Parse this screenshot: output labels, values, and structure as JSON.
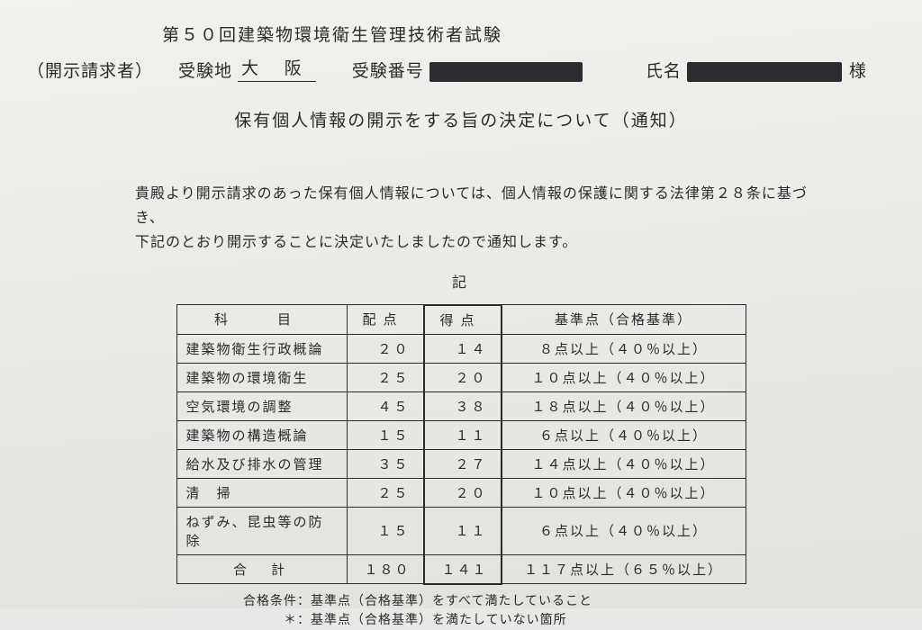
{
  "header": {
    "exam_title": "第５０回建築物環境衛生管理技術者試験",
    "requester_label": "（開示請求者）",
    "location_label": "受験地",
    "location_value": "大 阪",
    "exam_no_label": "受験番号",
    "name_label": "氏名",
    "honorific": "様"
  },
  "subtitle": "保有個人情報の開示をする旨の決定について（通知）",
  "body": {
    "line1": "貴殿より開示請求のあった保有個人情報については、個人情報の保護に関する法律第２８条に基づき、",
    "line2": "下記のとおり開示することに決定いたしましたので通知します。"
  },
  "ki": "記",
  "table": {
    "headers": {
      "subject": "科　目",
      "max": "配点",
      "score": "得点",
      "criteria": "基準点（合格基準）"
    },
    "rows": [
      {
        "subject": "建築物衛生行政概論",
        "max": "２０",
        "score": "１４",
        "criteria": "８点以上（４０％以上）"
      },
      {
        "subject": "建築物の環境衛生",
        "max": "２５",
        "score": "２０",
        "criteria": "１０点以上（４０％以上）"
      },
      {
        "subject": "空気環境の調整",
        "max": "４５",
        "score": "３８",
        "criteria": "１８点以上（４０％以上）"
      },
      {
        "subject": "建築物の構造概論",
        "max": "１５",
        "score": "１１",
        "criteria": "６点以上（４０％以上）"
      },
      {
        "subject": "給水及び排水の管理",
        "max": "３５",
        "score": "２７",
        "criteria": "１４点以上（４０％以上）"
      },
      {
        "subject": "清　掃",
        "max": "２５",
        "score": "２０",
        "criteria": "１０点以上（４０％以上）"
      },
      {
        "subject": "ねずみ、昆虫等の防除",
        "max": "１５",
        "score": "１１",
        "criteria": "６点以上（４０％以上）"
      }
    ],
    "total": {
      "subject": "合　計",
      "max": "１８０",
      "score": "１４１",
      "criteria": "１１７点以上（６５％以上）"
    }
  },
  "notes": {
    "line1": "合格条件：基準点（合格基準）をすべて満たしていること",
    "line2": "　　　＊：基準点（合格基準）を満たしていない箇所"
  },
  "style": {
    "redact_exam_no_width": 170,
    "redact_name_width": 172,
    "text_color": "#2a2a2a",
    "bg_color": "#ecebe8"
  }
}
